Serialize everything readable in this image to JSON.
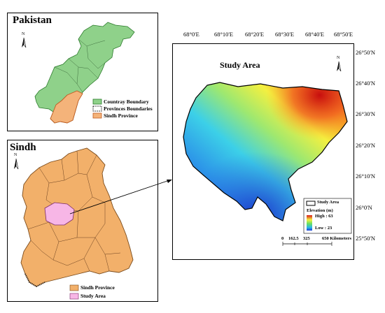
{
  "pakistan_panel": {
    "title": "Pakistan",
    "north": "N",
    "legend": [
      {
        "label": "Countray Boundary",
        "color": "#8fd18a",
        "border": "#2a7a2a"
      },
      {
        "label": "Provinces Boundaries",
        "color": "#ffffff",
        "border": "#000000"
      },
      {
        "label": "Sindh Province",
        "color": "#f4b37a",
        "border": "#c05a20"
      }
    ]
  },
  "sindh_panel": {
    "title": "Sindh",
    "north": "N",
    "legend": [
      {
        "label": "Sindh Province",
        "color": "#f2b06a"
      },
      {
        "label": "Study Area",
        "color": "#f7b6e6"
      }
    ]
  },
  "study_panel": {
    "title": "Study Area",
    "north": "N",
    "top_ticks": [
      "68°0'E",
      "68°10'E",
      "68°20'E",
      "68°30'E",
      "68°40'E",
      "68°50'E"
    ],
    "right_ticks": [
      "26°50'N",
      "26°40'N",
      "26°30'N",
      "26°20'N",
      "26°10'N",
      "26°0'N",
      "25°50'N"
    ],
    "legend": {
      "boundary_label": "Study Area",
      "elevation_title": "Elevation (m)",
      "high_label": "High : 63",
      "low_label": "Low : 23",
      "high_value": 63,
      "low_value": 23
    },
    "scale": {
      "labels": [
        "0",
        "162.5",
        "325",
        "650 Kilometers"
      ]
    }
  }
}
